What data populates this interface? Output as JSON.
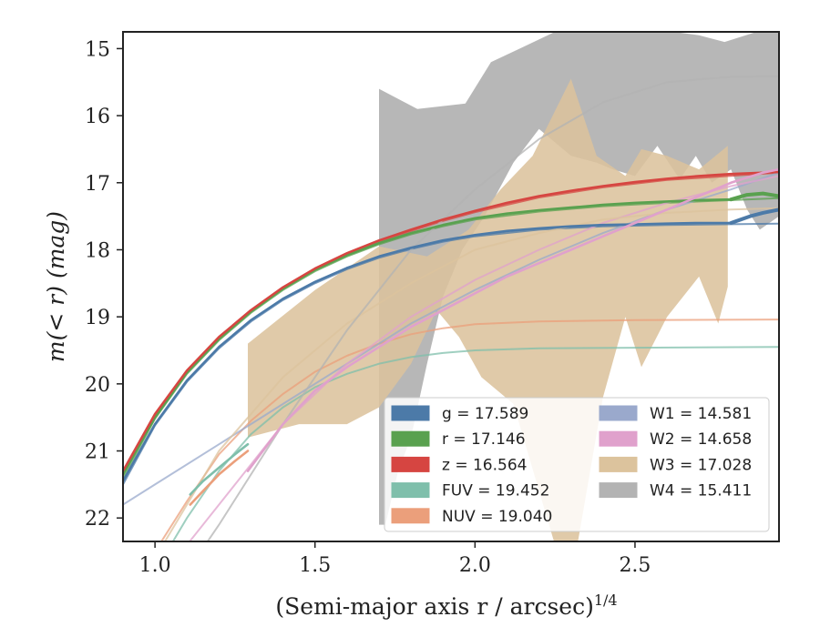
{
  "chart_data": {
    "type": "line",
    "xlabel": "(Semi-major axis r / arcsec)",
    "xlabel_exponent": "1/4",
    "ylabel": "m(< r) (mag)",
    "xlim": [
      0.9,
      2.95
    ],
    "ylim": [
      22.35,
      14.75
    ],
    "y_inverted": true,
    "xticks": [
      1.0,
      1.5,
      2.0,
      2.5
    ],
    "xtick_labels": [
      "1.0",
      "1.5",
      "2.0",
      "2.5"
    ],
    "yticks": [
      15,
      16,
      17,
      18,
      19,
      20,
      21,
      22
    ],
    "ytick_labels": [
      "15",
      "16",
      "17",
      "18",
      "19",
      "20",
      "21",
      "22"
    ],
    "grid": false,
    "legend_position": "lower right",
    "series": [
      {
        "name": "g",
        "legend": "g = 17.589",
        "color": "#4c7aa8",
        "data_curve": [
          [
            0.9,
            21.45
          ],
          [
            1.0,
            20.6
          ],
          [
            1.1,
            19.95
          ],
          [
            1.2,
            19.45
          ],
          [
            1.3,
            19.05
          ],
          [
            1.4,
            18.73
          ],
          [
            1.5,
            18.48
          ],
          [
            1.6,
            18.27
          ],
          [
            1.7,
            18.1
          ],
          [
            1.8,
            17.97
          ],
          [
            1.9,
            17.86
          ],
          [
            2.0,
            17.78
          ],
          [
            2.1,
            17.72
          ],
          [
            2.2,
            17.68
          ],
          [
            2.3,
            17.65
          ],
          [
            2.4,
            17.63
          ],
          [
            2.5,
            17.62
          ],
          [
            2.6,
            17.61
          ],
          [
            2.7,
            17.6
          ],
          [
            2.8,
            17.6
          ]
        ],
        "data_tail": [
          [
            2.8,
            17.6
          ],
          [
            2.83,
            17.55
          ],
          [
            2.86,
            17.5
          ],
          [
            2.9,
            17.45
          ],
          [
            2.95,
            17.4
          ]
        ],
        "model": [
          [
            0.9,
            21.5
          ],
          [
            1.0,
            20.62
          ],
          [
            1.1,
            19.97
          ],
          [
            1.2,
            19.47
          ],
          [
            1.3,
            19.07
          ],
          [
            1.4,
            18.75
          ],
          [
            1.5,
            18.5
          ],
          [
            1.6,
            18.29
          ],
          [
            1.7,
            18.12
          ],
          [
            1.8,
            17.99
          ],
          [
            1.9,
            17.88
          ],
          [
            2.0,
            17.8
          ],
          [
            2.2,
            17.7
          ],
          [
            2.4,
            17.65
          ],
          [
            2.6,
            17.63
          ],
          [
            2.95,
            17.61
          ]
        ]
      },
      {
        "name": "r",
        "legend": "r = 17.146",
        "color": "#59a14f",
        "data_curve": [
          [
            0.9,
            21.35
          ],
          [
            1.0,
            20.5
          ],
          [
            1.1,
            19.83
          ],
          [
            1.2,
            19.33
          ],
          [
            1.3,
            18.92
          ],
          [
            1.4,
            18.58
          ],
          [
            1.5,
            18.3
          ],
          [
            1.6,
            18.08
          ],
          [
            1.7,
            17.9
          ],
          [
            1.8,
            17.75
          ],
          [
            1.9,
            17.63
          ],
          [
            2.0,
            17.53
          ],
          [
            2.1,
            17.46
          ],
          [
            2.2,
            17.41
          ],
          [
            2.3,
            17.37
          ],
          [
            2.4,
            17.33
          ],
          [
            2.5,
            17.3
          ],
          [
            2.6,
            17.28
          ],
          [
            2.7,
            17.26
          ],
          [
            2.8,
            17.25
          ]
        ],
        "data_tail": [
          [
            2.8,
            17.25
          ],
          [
            2.85,
            17.18
          ],
          [
            2.9,
            17.16
          ],
          [
            2.95,
            17.2
          ]
        ],
        "model": [
          [
            0.9,
            21.4
          ],
          [
            1.0,
            20.52
          ],
          [
            1.1,
            19.85
          ],
          [
            1.2,
            19.35
          ],
          [
            1.3,
            18.94
          ],
          [
            1.4,
            18.6
          ],
          [
            1.5,
            18.32
          ],
          [
            1.6,
            18.1
          ],
          [
            1.7,
            17.92
          ],
          [
            1.8,
            17.77
          ],
          [
            1.9,
            17.65
          ],
          [
            2.0,
            17.55
          ],
          [
            2.2,
            17.43
          ],
          [
            2.4,
            17.35
          ],
          [
            2.6,
            17.3
          ],
          [
            2.95,
            17.23
          ]
        ]
      },
      {
        "name": "z",
        "legend": "z = 16.564",
        "color": "#d64541",
        "data_curve": [
          [
            0.9,
            21.3
          ],
          [
            1.0,
            20.45
          ],
          [
            1.1,
            19.8
          ],
          [
            1.2,
            19.3
          ],
          [
            1.3,
            18.9
          ],
          [
            1.4,
            18.56
          ],
          [
            1.5,
            18.28
          ],
          [
            1.6,
            18.05
          ],
          [
            1.7,
            17.86
          ],
          [
            1.8,
            17.7
          ],
          [
            1.9,
            17.55
          ],
          [
            2.0,
            17.42
          ],
          [
            2.1,
            17.3
          ],
          [
            2.2,
            17.2
          ],
          [
            2.3,
            17.12
          ],
          [
            2.4,
            17.05
          ],
          [
            2.5,
            16.99
          ],
          [
            2.6,
            16.94
          ],
          [
            2.7,
            16.9
          ],
          [
            2.8,
            16.87
          ],
          [
            2.95,
            16.84
          ]
        ],
        "data_tail": [],
        "model": [
          [
            0.9,
            21.32
          ],
          [
            1.0,
            20.47
          ],
          [
            1.1,
            19.82
          ],
          [
            1.2,
            19.32
          ],
          [
            1.3,
            18.92
          ],
          [
            1.4,
            18.58
          ],
          [
            1.5,
            18.3
          ],
          [
            1.6,
            18.07
          ],
          [
            1.7,
            17.88
          ],
          [
            1.8,
            17.72
          ],
          [
            1.9,
            17.57
          ],
          [
            2.0,
            17.44
          ],
          [
            2.2,
            17.22
          ],
          [
            2.4,
            17.07
          ],
          [
            2.6,
            16.96
          ],
          [
            2.95,
            16.85
          ]
        ]
      },
      {
        "name": "FUV",
        "legend": "FUV = 19.452",
        "color": "#7fbfab",
        "data_curve": [
          [
            1.11,
            21.65
          ],
          [
            1.15,
            21.45
          ],
          [
            1.2,
            21.25
          ],
          [
            1.25,
            21.05
          ],
          [
            1.29,
            20.9
          ]
        ],
        "data_tail": [],
        "model": [
          [
            0.9,
            23.5
          ],
          [
            1.0,
            22.8
          ],
          [
            1.1,
            22.0
          ],
          [
            1.2,
            21.3
          ],
          [
            1.3,
            20.75
          ],
          [
            1.4,
            20.35
          ],
          [
            1.5,
            20.05
          ],
          [
            1.6,
            19.85
          ],
          [
            1.7,
            19.7
          ],
          [
            1.8,
            19.6
          ],
          [
            1.9,
            19.54
          ],
          [
            2.0,
            19.5
          ],
          [
            2.2,
            19.47
          ],
          [
            2.5,
            19.46
          ],
          [
            2.95,
            19.45
          ]
        ]
      },
      {
        "name": "NUV",
        "legend": "NUV = 19.040",
        "color": "#eb9f7b",
        "data_curve": [
          [
            1.11,
            21.8
          ],
          [
            1.15,
            21.6
          ],
          [
            1.2,
            21.35
          ],
          [
            1.25,
            21.15
          ],
          [
            1.29,
            21.0
          ]
        ],
        "data_tail": [],
        "model": [
          [
            0.9,
            23.3
          ],
          [
            1.0,
            22.5
          ],
          [
            1.1,
            21.75
          ],
          [
            1.2,
            21.05
          ],
          [
            1.3,
            20.55
          ],
          [
            1.4,
            20.15
          ],
          [
            1.5,
            19.82
          ],
          [
            1.6,
            19.58
          ],
          [
            1.7,
            19.4
          ],
          [
            1.8,
            19.26
          ],
          [
            1.9,
            19.17
          ],
          [
            2.0,
            19.11
          ],
          [
            2.2,
            19.07
          ],
          [
            2.5,
            19.05
          ],
          [
            2.95,
            19.04
          ]
        ]
      },
      {
        "name": "W1",
        "legend": "W1 = 14.581",
        "color": "#9aa9cc",
        "data_curve": [],
        "data_tail": [],
        "model": [
          [
            0.9,
            21.8
          ],
          [
            1.0,
            21.5
          ],
          [
            1.2,
            20.9
          ],
          [
            1.4,
            20.3
          ],
          [
            1.6,
            19.7
          ],
          [
            1.8,
            19.1
          ],
          [
            2.0,
            18.6
          ],
          [
            2.2,
            18.15
          ],
          [
            2.4,
            17.75
          ],
          [
            2.6,
            17.4
          ],
          [
            2.8,
            17.1
          ],
          [
            2.95,
            16.85
          ]
        ]
      },
      {
        "name": "W2",
        "legend": "W2 = 14.658",
        "color": "#e0a1cc",
        "data_curve": [
          [
            1.29,
            21.3
          ],
          [
            1.4,
            20.6
          ],
          [
            1.5,
            20.1
          ],
          [
            1.6,
            19.75
          ],
          [
            1.7,
            19.45
          ],
          [
            1.8,
            19.15
          ],
          [
            1.9,
            18.9
          ],
          [
            2.0,
            18.65
          ],
          [
            2.1,
            18.4
          ],
          [
            2.2,
            18.2
          ],
          [
            2.3,
            18.0
          ],
          [
            2.4,
            17.8
          ],
          [
            2.5,
            17.6
          ],
          [
            2.6,
            17.4
          ],
          [
            2.7,
            17.2
          ],
          [
            2.8,
            17.0
          ],
          [
            2.9,
            16.85
          ],
          [
            2.95,
            16.8
          ]
        ],
        "data_tail": [],
        "model": [
          [
            1.0,
            23.0
          ],
          [
            1.2,
            21.8
          ],
          [
            1.4,
            20.6
          ],
          [
            1.6,
            19.7
          ],
          [
            1.8,
            19.0
          ],
          [
            2.0,
            18.45
          ],
          [
            2.2,
            18.0
          ],
          [
            2.4,
            17.6
          ],
          [
            2.6,
            17.3
          ],
          [
            2.8,
            17.05
          ],
          [
            2.95,
            16.9
          ]
        ]
      },
      {
        "name": "W3",
        "legend": "W3 = 17.028",
        "color": "#dcc39d",
        "data_curve": [],
        "data_tail": [],
        "model": [
          [
            1.0,
            22.6
          ],
          [
            1.2,
            21.0
          ],
          [
            1.4,
            19.9
          ],
          [
            1.6,
            19.1
          ],
          [
            1.8,
            18.5
          ],
          [
            2.0,
            18.0
          ],
          [
            2.2,
            17.75
          ],
          [
            2.4,
            17.55
          ],
          [
            2.6,
            17.45
          ],
          [
            2.8,
            17.4
          ],
          [
            2.95,
            17.38
          ]
        ],
        "band_upper": [
          [
            1.29,
            19.4
          ],
          [
            1.5,
            18.6
          ],
          [
            1.7,
            17.95
          ],
          [
            1.85,
            18.1
          ],
          [
            1.98,
            17.7
          ],
          [
            2.08,
            17.1
          ],
          [
            2.18,
            16.6
          ],
          [
            2.3,
            15.45
          ],
          [
            2.38,
            16.6
          ],
          [
            2.47,
            16.9
          ],
          [
            2.52,
            16.5
          ],
          [
            2.6,
            16.6
          ],
          [
            2.7,
            16.8
          ],
          [
            2.79,
            16.45
          ]
        ],
        "band_lower": [
          [
            2.79,
            18.55
          ],
          [
            2.76,
            19.1
          ],
          [
            2.7,
            18.4
          ],
          [
            2.6,
            19.0
          ],
          [
            2.52,
            19.75
          ],
          [
            2.47,
            19.0
          ],
          [
            2.4,
            20.2
          ],
          [
            2.32,
            22.4
          ],
          [
            2.25,
            22.4
          ],
          [
            2.12,
            20.3
          ],
          [
            2.02,
            19.9
          ],
          [
            1.95,
            19.3
          ],
          [
            1.88,
            18.9
          ],
          [
            1.8,
            19.7
          ],
          [
            1.7,
            20.35
          ],
          [
            1.6,
            20.6
          ],
          [
            1.45,
            20.6
          ],
          [
            1.29,
            20.8
          ]
        ]
      },
      {
        "name": "W4",
        "legend": "W4 = 15.411",
        "color": "#b3b3b3",
        "data_curve": [],
        "data_tail": [],
        "model": [
          [
            1.0,
            23.5
          ],
          [
            1.2,
            22.1
          ],
          [
            1.4,
            20.6
          ],
          [
            1.6,
            19.2
          ],
          [
            1.8,
            18.0
          ],
          [
            2.0,
            17.1
          ],
          [
            2.2,
            16.35
          ],
          [
            2.4,
            15.8
          ],
          [
            2.6,
            15.5
          ],
          [
            2.8,
            15.42
          ],
          [
            2.95,
            15.41
          ]
        ],
        "band_upper": [
          [
            1.7,
            15.6
          ],
          [
            1.82,
            15.9
          ],
          [
            1.97,
            15.82
          ],
          [
            2.05,
            15.2
          ],
          [
            2.14,
            15.0
          ],
          [
            2.25,
            14.75
          ],
          [
            2.55,
            14.75
          ],
          [
            2.62,
            14.75
          ],
          [
            2.7,
            14.8
          ],
          [
            2.78,
            14.9
          ],
          [
            2.88,
            14.75
          ],
          [
            2.95,
            14.75
          ]
        ],
        "band_lower": [
          [
            2.95,
            17.5
          ],
          [
            2.89,
            17.7
          ],
          [
            2.85,
            17.4
          ],
          [
            2.8,
            16.8
          ],
          [
            2.74,
            17.0
          ],
          [
            2.69,
            16.6
          ],
          [
            2.64,
            16.95
          ],
          [
            2.57,
            16.45
          ],
          [
            2.5,
            16.9
          ],
          [
            2.43,
            16.8
          ],
          [
            2.38,
            16.7
          ],
          [
            2.3,
            16.6
          ],
          [
            2.2,
            16.2
          ],
          [
            2.12,
            16.7
          ],
          [
            2.03,
            17.5
          ],
          [
            1.96,
            18.0
          ],
          [
            1.9,
            18.7
          ],
          [
            1.85,
            19.7
          ],
          [
            1.8,
            20.8
          ],
          [
            1.76,
            21.3
          ],
          [
            1.72,
            22.1
          ],
          [
            1.7,
            22.1
          ]
        ]
      }
    ]
  }
}
